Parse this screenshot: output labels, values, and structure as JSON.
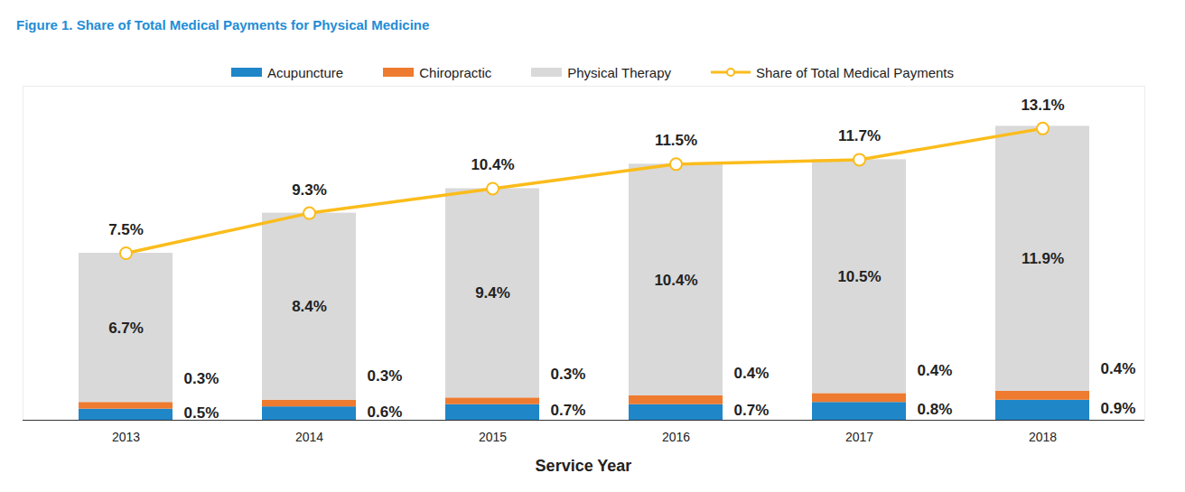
{
  "chart_data": {
    "type": "bar",
    "title": "Figure 1. Share of Total Medical Payments for Physical Medicine",
    "x_label": "Service Year",
    "categories": [
      "2013",
      "2014",
      "2015",
      "2016",
      "2017",
      "2018"
    ],
    "stacked": true,
    "data_labels": true,
    "tick_labels": "x",
    "legend": "top",
    "grid": false,
    "ylim": [
      0,
      15
    ],
    "series": [
      {
        "name": "Acupuncture",
        "color": "#1f86c8",
        "values": [
          0.5,
          0.6,
          0.7,
          0.7,
          0.8,
          0.9
        ],
        "value_labels": [
          "0.5%",
          "0.6%",
          "0.7%",
          "0.7%",
          "0.8%",
          "0.9%"
        ]
      },
      {
        "name": "Chiropractic",
        "color": "#ee7b30",
        "values": [
          0.3,
          0.3,
          0.3,
          0.4,
          0.4,
          0.4
        ],
        "value_labels": [
          "0.3%",
          "0.3%",
          "0.3%",
          "0.4%",
          "0.4%",
          "0.4%"
        ]
      },
      {
        "name": "Physical Therapy",
        "color": "#d9d9d9",
        "values": [
          6.7,
          8.4,
          9.4,
          10.4,
          10.5,
          11.9
        ],
        "value_labels": [
          "6.7%",
          "8.4%",
          "9.4%",
          "10.4%",
          "10.5%",
          "11.9%"
        ]
      },
      {
        "name": "Share of Total Medical Payments",
        "type": "line",
        "marker": "circle",
        "color": "#fbbc1b",
        "values": [
          7.5,
          9.3,
          10.4,
          11.5,
          11.7,
          13.1
        ],
        "value_labels": [
          "7.5%",
          "9.3%",
          "10.4%",
          "11.5%",
          "11.7%",
          "13.1%"
        ]
      }
    ]
  }
}
